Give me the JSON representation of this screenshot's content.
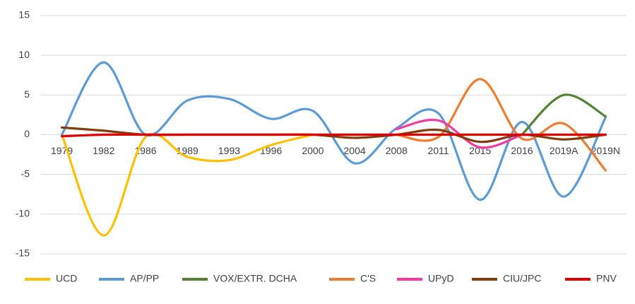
{
  "chart_data": {
    "type": "line",
    "categories": [
      "1979",
      "1982",
      "1986",
      "1989",
      "1993",
      "1996",
      "2000",
      "2004",
      "2008",
      "2011",
      "2015",
      "2016",
      "2019A",
      "2019N"
    ],
    "series": [
      {
        "name": "UCD",
        "color": "#ffc000",
        "values": [
          0,
          -12.7,
          -0.3,
          -2.8,
          -3.2,
          -1.3,
          0,
          null,
          null,
          null,
          null,
          null,
          null,
          null
        ]
      },
      {
        "name": "AP/PP",
        "color": "#5b9bd5",
        "values": [
          0,
          9.1,
          0,
          4.3,
          4.5,
          2,
          3,
          -3.6,
          0.8,
          2.7,
          -8.2,
          1.6,
          -7.8,
          2.2
        ]
      },
      {
        "name": "VOX/EXTR. DCHA",
        "color": "#548235",
        "values": [
          null,
          null,
          null,
          null,
          null,
          null,
          null,
          null,
          null,
          null,
          null,
          0,
          5,
          2.3
        ]
      },
      {
        "name": "C'S",
        "color": "#ed7d31",
        "values": [
          null,
          null,
          null,
          null,
          null,
          null,
          null,
          null,
          0,
          -0.3,
          7,
          -0.5,
          1.4,
          -4.5
        ]
      },
      {
        "name": "UPyD",
        "color": "#f03ca0",
        "values": [
          null,
          null,
          null,
          null,
          null,
          null,
          null,
          null,
          0.7,
          1.8,
          -1.6,
          0,
          null,
          null
        ]
      },
      {
        "name": "CIU/JPC",
        "color": "#843c0c",
        "values": [
          0.9,
          0.5,
          0,
          0,
          0,
          0,
          0,
          -0.4,
          0,
          0.6,
          -0.9,
          0,
          -0.6,
          0
        ]
      },
      {
        "name": "PNV",
        "color": "#e00000",
        "values": [
          -0.2,
          0,
          0,
          0,
          0,
          0,
          0,
          0,
          0,
          0,
          0,
          0,
          0,
          0
        ]
      }
    ],
    "ylim": [
      -15,
      15
    ],
    "yticks": [
      -15,
      -10,
      -5,
      0,
      5,
      10,
      15
    ],
    "grid": true,
    "legend": "bottom"
  }
}
